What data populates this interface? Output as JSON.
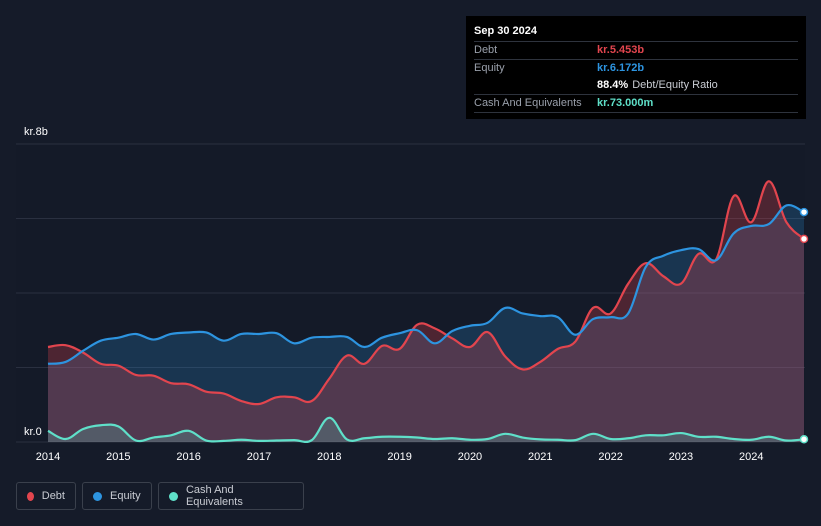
{
  "tooltip": {
    "date": "Sep 30 2024",
    "debt_label": "Debt",
    "debt_value": "kr.5.453b",
    "equity_label": "Equity",
    "equity_value": "kr.6.172b",
    "ratio_value": "88.4%",
    "ratio_label": "Debt/Equity Ratio",
    "cash_label": "Cash And Equivalents",
    "cash_value": "kr.73.000m"
  },
  "legend": {
    "debt": "Debt",
    "equity": "Equity",
    "cash": "Cash And Equivalents"
  },
  "colors": {
    "debt": "#e2454e",
    "equity": "#2d94e0",
    "cash": "#5fe0c9",
    "background": "#151b29"
  },
  "chart_data": {
    "type": "area",
    "ylabel_top": "kr.8b",
    "ylabel_bottom": "kr.0",
    "ylim": [
      0,
      8
    ],
    "xlim": [
      2014,
      2024.75
    ],
    "x_ticks": [
      "2014",
      "2015",
      "2016",
      "2017",
      "2018",
      "2019",
      "2020",
      "2021",
      "2022",
      "2023",
      "2024"
    ],
    "x_tick_values": [
      2014,
      2015,
      2016,
      2017,
      2018,
      2019,
      2020,
      2021,
      2022,
      2023,
      2024
    ],
    "series": [
      {
        "name": "Debt",
        "points": [
          [
            2014.0,
            2.55
          ],
          [
            2014.25,
            2.6
          ],
          [
            2014.5,
            2.4
          ],
          [
            2014.75,
            2.1
          ],
          [
            2015.0,
            2.05
          ],
          [
            2015.25,
            1.8
          ],
          [
            2015.5,
            1.78
          ],
          [
            2015.75,
            1.58
          ],
          [
            2016.0,
            1.55
          ],
          [
            2016.25,
            1.35
          ],
          [
            2016.5,
            1.3
          ],
          [
            2016.75,
            1.1
          ],
          [
            2017.0,
            1.02
          ],
          [
            2017.25,
            1.2
          ],
          [
            2017.5,
            1.2
          ],
          [
            2017.75,
            1.1
          ],
          [
            2018.0,
            1.7
          ],
          [
            2018.25,
            2.32
          ],
          [
            2018.5,
            2.1
          ],
          [
            2018.75,
            2.58
          ],
          [
            2019.0,
            2.5
          ],
          [
            2019.25,
            3.15
          ],
          [
            2019.5,
            3.05
          ],
          [
            2019.75,
            2.78
          ],
          [
            2020.0,
            2.55
          ],
          [
            2020.25,
            2.95
          ],
          [
            2020.5,
            2.3
          ],
          [
            2020.75,
            1.95
          ],
          [
            2021.0,
            2.15
          ],
          [
            2021.25,
            2.5
          ],
          [
            2021.5,
            2.7
          ],
          [
            2021.75,
            3.6
          ],
          [
            2022.0,
            3.45
          ],
          [
            2022.25,
            4.25
          ],
          [
            2022.5,
            4.8
          ],
          [
            2022.75,
            4.45
          ],
          [
            2023.0,
            4.25
          ],
          [
            2023.25,
            5.05
          ],
          [
            2023.5,
            4.9
          ],
          [
            2023.75,
            6.6
          ],
          [
            2024.0,
            5.9
          ],
          [
            2024.25,
            7.0
          ],
          [
            2024.5,
            5.9
          ],
          [
            2024.75,
            5.453
          ]
        ]
      },
      {
        "name": "Equity",
        "points": [
          [
            2014.0,
            2.1
          ],
          [
            2014.25,
            2.15
          ],
          [
            2014.5,
            2.45
          ],
          [
            2014.75,
            2.72
          ],
          [
            2015.0,
            2.8
          ],
          [
            2015.25,
            2.9
          ],
          [
            2015.5,
            2.75
          ],
          [
            2015.75,
            2.9
          ],
          [
            2016.0,
            2.94
          ],
          [
            2016.25,
            2.94
          ],
          [
            2016.5,
            2.72
          ],
          [
            2016.75,
            2.9
          ],
          [
            2017.0,
            2.9
          ],
          [
            2017.25,
            2.92
          ],
          [
            2017.5,
            2.65
          ],
          [
            2017.75,
            2.8
          ],
          [
            2018.0,
            2.82
          ],
          [
            2018.25,
            2.82
          ],
          [
            2018.5,
            2.55
          ],
          [
            2018.75,
            2.8
          ],
          [
            2019.0,
            2.92
          ],
          [
            2019.25,
            3.0
          ],
          [
            2019.5,
            2.65
          ],
          [
            2019.75,
            2.98
          ],
          [
            2020.0,
            3.12
          ],
          [
            2020.25,
            3.2
          ],
          [
            2020.5,
            3.6
          ],
          [
            2020.75,
            3.45
          ],
          [
            2021.0,
            3.38
          ],
          [
            2021.25,
            3.35
          ],
          [
            2021.5,
            2.88
          ],
          [
            2021.75,
            3.3
          ],
          [
            2022.0,
            3.35
          ],
          [
            2022.25,
            3.45
          ],
          [
            2022.5,
            4.7
          ],
          [
            2022.75,
            5.0
          ],
          [
            2023.0,
            5.15
          ],
          [
            2023.25,
            5.18
          ],
          [
            2023.5,
            4.88
          ],
          [
            2023.75,
            5.6
          ],
          [
            2024.0,
            5.8
          ],
          [
            2024.25,
            5.85
          ],
          [
            2024.5,
            6.35
          ],
          [
            2024.75,
            6.172
          ]
        ]
      },
      {
        "name": "Cash And Equivalents",
        "points": [
          [
            2014.0,
            0.3
          ],
          [
            2014.25,
            0.08
          ],
          [
            2014.5,
            0.35
          ],
          [
            2014.75,
            0.45
          ],
          [
            2015.0,
            0.42
          ],
          [
            2015.25,
            0.04
          ],
          [
            2015.5,
            0.12
          ],
          [
            2015.75,
            0.18
          ],
          [
            2016.0,
            0.3
          ],
          [
            2016.25,
            0.04
          ],
          [
            2016.5,
            0.03
          ],
          [
            2016.75,
            0.06
          ],
          [
            2017.0,
            0.03
          ],
          [
            2017.25,
            0.04
          ],
          [
            2017.5,
            0.05
          ],
          [
            2017.75,
            0.05
          ],
          [
            2018.0,
            0.65
          ],
          [
            2018.25,
            0.07
          ],
          [
            2018.5,
            0.1
          ],
          [
            2018.75,
            0.14
          ],
          [
            2019.0,
            0.14
          ],
          [
            2019.25,
            0.12
          ],
          [
            2019.5,
            0.08
          ],
          [
            2019.75,
            0.1
          ],
          [
            2020.0,
            0.06
          ],
          [
            2020.25,
            0.08
          ],
          [
            2020.5,
            0.22
          ],
          [
            2020.75,
            0.12
          ],
          [
            2021.0,
            0.07
          ],
          [
            2021.25,
            0.06
          ],
          [
            2021.5,
            0.05
          ],
          [
            2021.75,
            0.22
          ],
          [
            2022.0,
            0.08
          ],
          [
            2022.25,
            0.1
          ],
          [
            2022.5,
            0.18
          ],
          [
            2022.75,
            0.18
          ],
          [
            2023.0,
            0.24
          ],
          [
            2023.25,
            0.14
          ],
          [
            2023.5,
            0.14
          ],
          [
            2023.75,
            0.08
          ],
          [
            2024.0,
            0.06
          ],
          [
            2024.25,
            0.14
          ],
          [
            2024.5,
            0.04
          ],
          [
            2024.75,
            0.073
          ]
        ]
      }
    ]
  }
}
